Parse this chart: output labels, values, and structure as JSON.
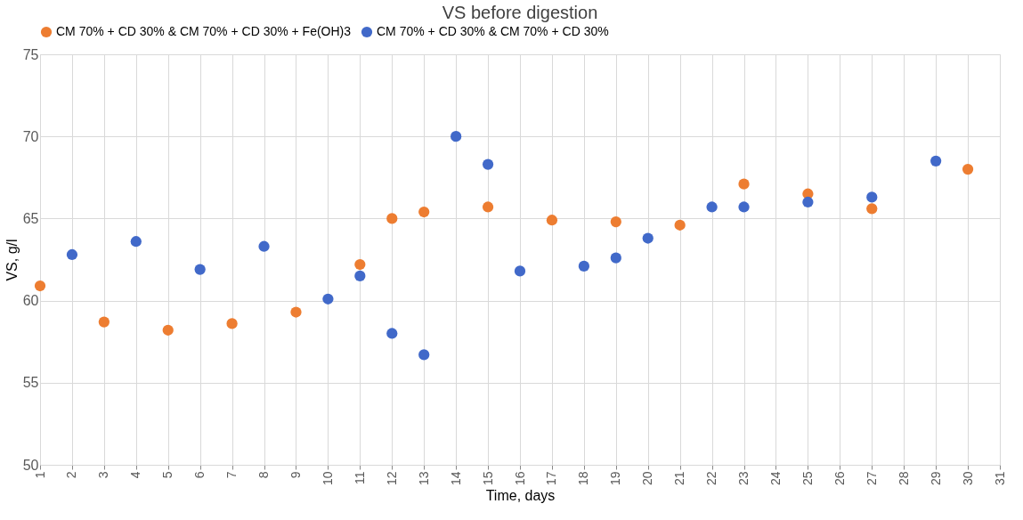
{
  "chart_data": {
    "type": "scatter",
    "title": "VS before digestion",
    "xlabel": "Time, days",
    "ylabel": "VS, g/l",
    "xlim": [
      1,
      31
    ],
    "xticks": [
      1,
      2,
      3,
      4,
      5,
      6,
      7,
      8,
      9,
      10,
      11,
      12,
      13,
      14,
      15,
      16,
      17,
      18,
      19,
      20,
      21,
      22,
      23,
      24,
      25,
      26,
      27,
      28,
      29,
      30,
      31
    ],
    "ylim": [
      50,
      75
    ],
    "yticks": [
      50,
      55,
      60,
      65,
      70,
      75
    ],
    "grid": true,
    "legend": "top",
    "marker": "circle",
    "series": [
      {
        "name": "CM 70% + CD 30% & CM 70% + CD 30% + Fe(OH)3",
        "color": "#ed7d31",
        "x": [
          1,
          3,
          5,
          7,
          9,
          11,
          12,
          13,
          15,
          17,
          19,
          21,
          23,
          25,
          27,
          30
        ],
        "values": [
          60.9,
          58.7,
          58.2,
          58.6,
          59.3,
          62.2,
          65.0,
          65.4,
          65.7,
          64.9,
          64.8,
          64.6,
          67.1,
          66.5,
          65.6,
          68.0
        ]
      },
      {
        "name": "CM 70% + CD 30% & CM 70% + CD 30%",
        "color": "#4169c9",
        "x": [
          2,
          4,
          6,
          8,
          10,
          11,
          12,
          13,
          14,
          15,
          16,
          18,
          19,
          20,
          22,
          23,
          25,
          27,
          29
        ],
        "values": [
          62.8,
          63.6,
          61.9,
          63.3,
          60.1,
          61.5,
          58.0,
          56.7,
          70.0,
          68.3,
          61.8,
          62.1,
          62.6,
          63.8,
          65.7,
          65.7,
          66.0,
          66.3,
          68.5
        ]
      }
    ]
  }
}
